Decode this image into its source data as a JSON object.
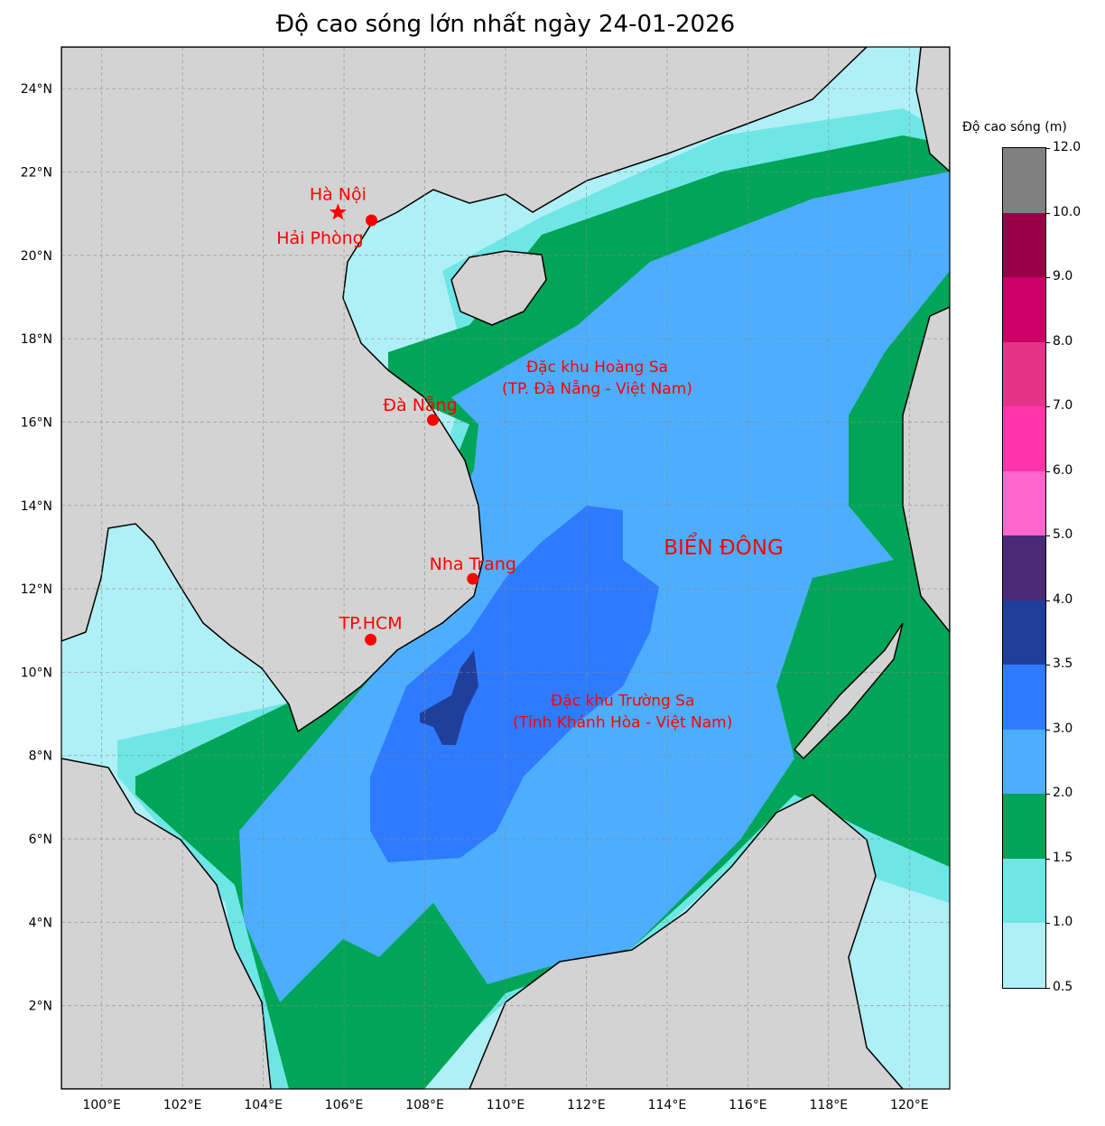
{
  "title": "Độ cao sóng lớn nhất ngày 24-01-2026",
  "map": {
    "lon_range": [
      99,
      121
    ],
    "lat_range": [
      0,
      25
    ],
    "lon_ticks": [
      {
        "v": 100,
        "label": "100°E"
      },
      {
        "v": 102,
        "label": "102°E"
      },
      {
        "v": 104,
        "label": "104°E"
      },
      {
        "v": 106,
        "label": "106°E"
      },
      {
        "v": 108,
        "label": "108°E"
      },
      {
        "v": 110,
        "label": "110°E"
      },
      {
        "v": 112,
        "label": "112°E"
      },
      {
        "v": 114,
        "label": "114°E"
      },
      {
        "v": 116,
        "label": "116°E"
      },
      {
        "v": 118,
        "label": "118°E"
      },
      {
        "v": 120,
        "label": "120°E"
      }
    ],
    "lat_ticks": [
      {
        "v": 2,
        "label": "2°N"
      },
      {
        "v": 4,
        "label": "4°N"
      },
      {
        "v": 6,
        "label": "6°N"
      },
      {
        "v": 8,
        "label": "8°N"
      },
      {
        "v": 10,
        "label": "10°N"
      },
      {
        "v": 12,
        "label": "12°N"
      },
      {
        "v": 14,
        "label": "14°N"
      },
      {
        "v": 16,
        "label": "16°N"
      },
      {
        "v": 18,
        "label": "18°N"
      },
      {
        "v": 20,
        "label": "20°N"
      },
      {
        "v": 22,
        "label": "22°N"
      },
      {
        "v": 24,
        "label": "24°N"
      }
    ],
    "land_color": "#d3d3d3"
  },
  "cities": [
    {
      "name": "Hà Nội",
      "lon": 105.85,
      "lat": 21.03,
      "marker": "star",
      "dx": 0,
      "dy": -8
    },
    {
      "name": "Hải Phòng",
      "lon": 106.68,
      "lat": 20.84,
      "marker": "dot",
      "dx": -57,
      "dy": 26
    },
    {
      "name": "Đà Nẵng",
      "lon": 108.2,
      "lat": 16.05,
      "marker": "dot",
      "dx": 0,
      "dy": -10
    },
    {
      "name": "Nha Trang",
      "lon": 109.19,
      "lat": 12.24,
      "marker": "dot",
      "dx": 0,
      "dy": -10
    },
    {
      "name": "TP.HCM",
      "lon": 106.66,
      "lat": 10.78,
      "marker": "dot",
      "dx": 0,
      "dy": -12
    }
  ],
  "regions": [
    {
      "lines": [
        "Đặc khu Hoàng Sa",
        "(TP. Đà Nẵng - Việt Nam)"
      ],
      "lon": 112.0,
      "lat": 17.2
    },
    {
      "lines": [
        "Đặc khu Trường Sa",
        "(Tỉnh Khánh Hòa - Việt Nam)"
      ],
      "lon": 112.9,
      "lat": 9.2
    }
  ],
  "sea_label": {
    "text": "BIỂN ĐÔNG",
    "lon": 115.4,
    "lat": 13.0
  },
  "colorbar": {
    "title": "Độ cao sóng (m)",
    "bounds": [
      0.5,
      1.0,
      1.5,
      2.0,
      3.0,
      3.5,
      4.0,
      5.0,
      6.0,
      7.0,
      8.0,
      9.0,
      10.0,
      12.0
    ],
    "labels": [
      "0.5",
      "1.0",
      "1.5",
      "2.0",
      "3.0",
      "3.5",
      "4.0",
      "5.0",
      "6.0",
      "7.0",
      "8.0",
      "9.0",
      "10.0",
      "12.0"
    ],
    "colors": [
      "#aff0f6",
      "#6ee6e6",
      "#00a557",
      "#4daeff",
      "#2e7bff",
      "#1f3f9a",
      "#4a2a78",
      "#ff66cc",
      "#ff33aa",
      "#e6338a",
      "#cc0066",
      "#990047",
      "#808080"
    ]
  }
}
